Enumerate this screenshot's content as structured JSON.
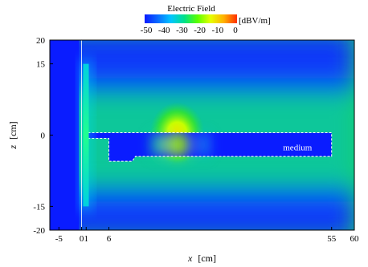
{
  "chart_data": {
    "type": "heatmap",
    "title": "Electric Field",
    "colorbar": {
      "unit": "[dBV/m]",
      "ticks": [
        "-50",
        "-40",
        "-30",
        "-20",
        "-10",
        "0"
      ],
      "range": [
        -50,
        0
      ],
      "colors": [
        "#0a1cff",
        "#0a6bff",
        "#00c6ff",
        "#00e08a",
        "#5aff00",
        "#e6ff00",
        "#ffb000",
        "#ff3000"
      ]
    },
    "x_axis": {
      "label_var": "x",
      "label_unit": "[cm]",
      "range": [
        -7,
        60
      ],
      "ticks": [
        {
          "value": -5,
          "label": "-5"
        },
        {
          "value": 0,
          "label": "0"
        },
        {
          "value": 1,
          "label": "1"
        },
        {
          "value": 6,
          "label": "6"
        },
        {
          "value": 55,
          "label": "55"
        },
        {
          "value": 60,
          "label": "60"
        }
      ]
    },
    "y_axis": {
      "label_var": "z",
      "label_unit": "[cm]",
      "range": [
        -20,
        20
      ],
      "ticks": [
        {
          "value": 20,
          "label": "20"
        },
        {
          "value": 15,
          "label": "15"
        },
        {
          "value": 0,
          "label": "0"
        },
        {
          "value": -15,
          "label": "-15"
        },
        {
          "value": -20,
          "label": "-20"
        }
      ]
    },
    "annotations": [
      {
        "text": "medium",
        "x": 47.5,
        "y": -2.5
      }
    ],
    "structures": {
      "antenna_plate": {
        "x": [
          0.5,
          1.4
        ],
        "z": [
          -15,
          15
        ]
      },
      "medium_outline_z": [
        0.5,
        -4.5
      ],
      "medium_x": [
        6,
        55
      ]
    },
    "field_features": {
      "hotspot": {
        "x": 21,
        "z": 0.5,
        "level_dB": -5
      },
      "background_level_dB": -40
    }
  }
}
